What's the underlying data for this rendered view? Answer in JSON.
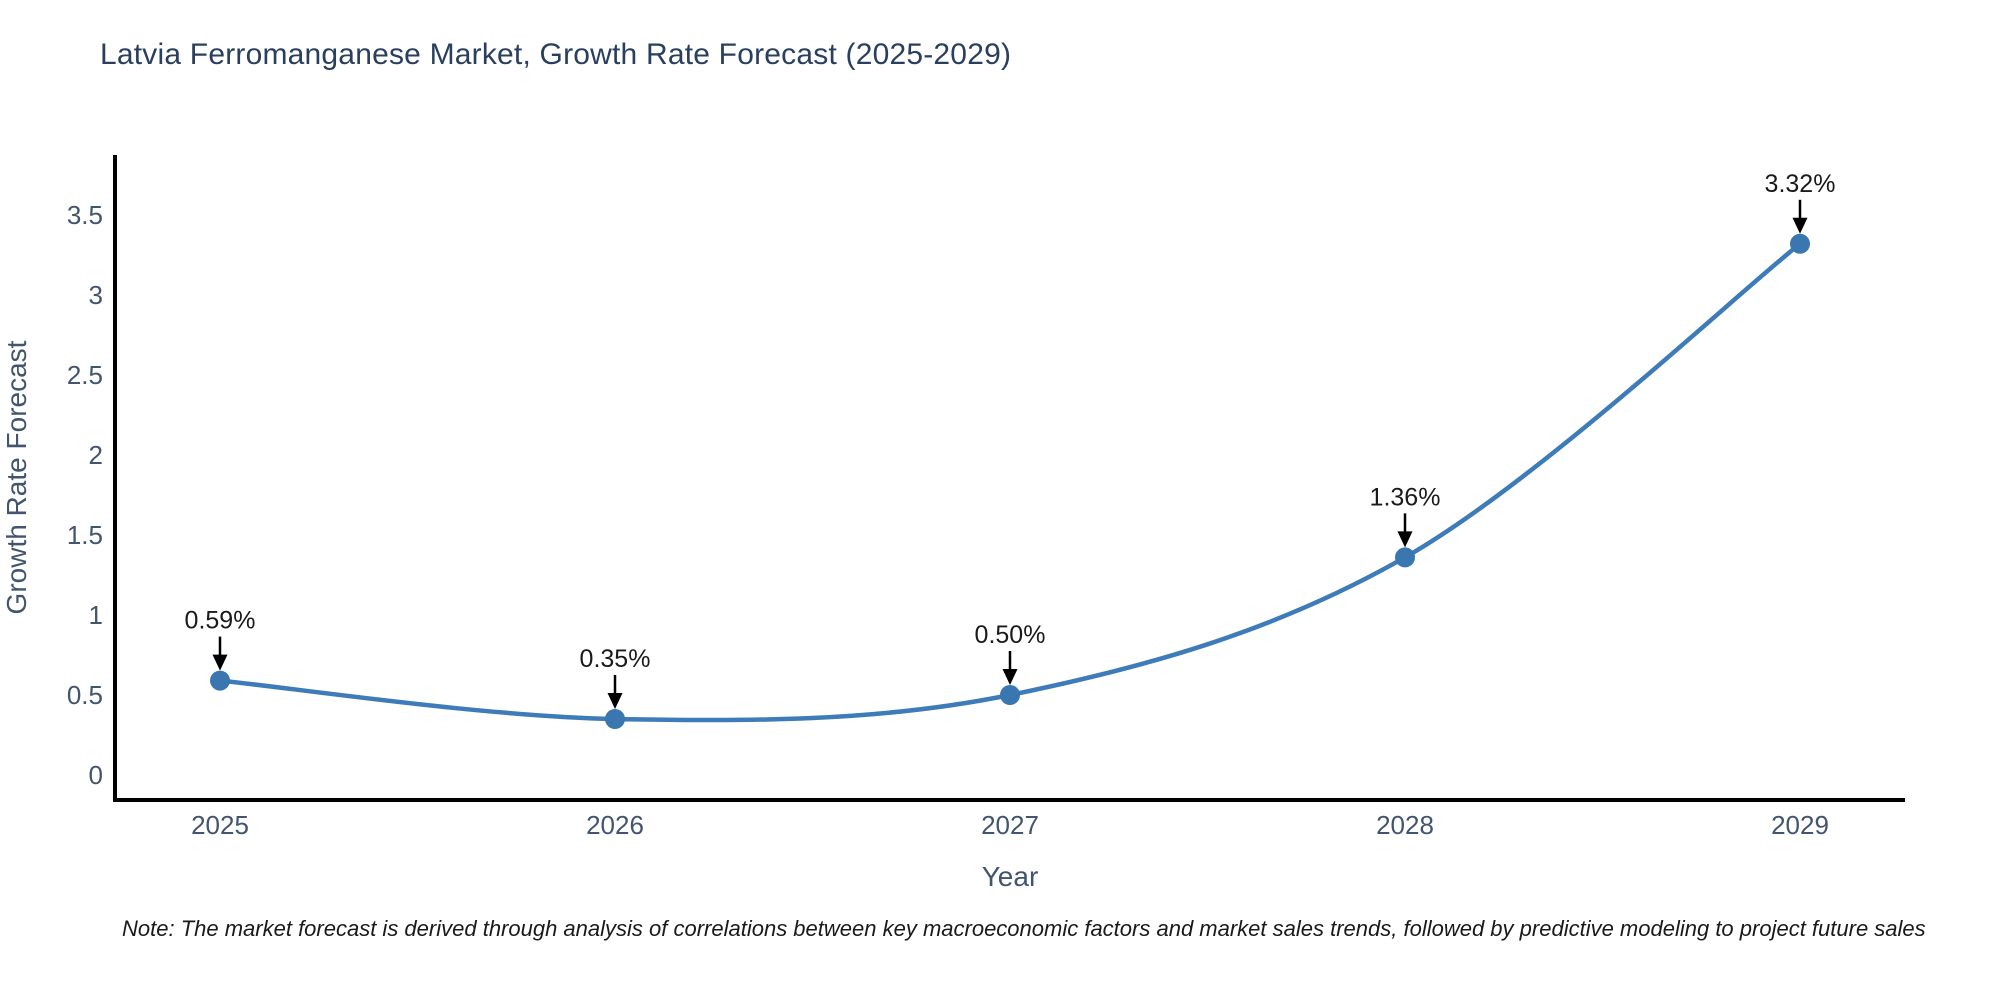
{
  "title": "Latvia Ferromanganese Market, Growth Rate Forecast (2025-2029)",
  "note": "Note: The market forecast is derived through analysis of correlations between key macroeconomic factors and market sales trends, followed by predictive modeling to project future sales",
  "chart_data": {
    "type": "line",
    "title": "Latvia Ferromanganese Market, Growth Rate Forecast (2025-2029)",
    "x": [
      "2025",
      "2026",
      "2027",
      "2028",
      "2029"
    ],
    "series": [
      {
        "name": "Growth Rate Forecast",
        "values": [
          0.59,
          0.35,
          0.5,
          1.36,
          3.32
        ]
      }
    ],
    "point_labels": [
      "0.59%",
      "0.35%",
      "0.50%",
      "1.36%",
      "3.32%"
    ],
    "xlabel": "Year",
    "ylabel": "Growth Rate Forecast",
    "yticks": [
      0,
      0.5,
      1,
      1.5,
      2,
      2.5,
      3,
      3.5
    ],
    "ylim": [
      -0.16,
      3.88
    ],
    "grid": false,
    "legend": "none",
    "line_shape": "spline",
    "annotation_arrows": true,
    "colors": {
      "line": "#3d7cb8",
      "marker": "#3a76b0",
      "axis_line": "#000000",
      "tick_label": "#42546e",
      "axis_title": "#42546e",
      "chart_title": "#2a3f5f",
      "annotation_text": "#1a1a1a",
      "annotation_arrow": "#000000",
      "background": "#ffffff"
    }
  }
}
